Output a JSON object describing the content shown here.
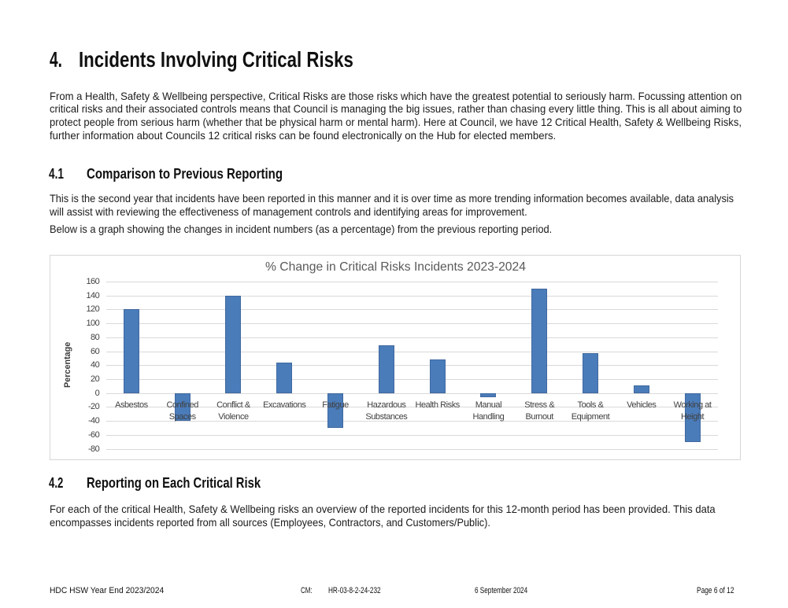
{
  "document": {
    "heading": {
      "number": "4.",
      "title": "Incidents Involving Critical Risks"
    },
    "intro_paragraph_lines": [
      "From a Health, Safety & Wellbeing perspective, Critical Risks are those risks which have the greatest potential to seriously harm. Focussing attention on",
      "critical risks and their associated controls means that Council is managing the big issues, rather than chasing every little thing. This is all about aiming to",
      "protect people from serious harm (whether that be physical harm or mental harm). Here at Council, we have 12 Critical Health, Safety & Wellbeing Risks,",
      "further information about Councils 12 critical risks can be found electronically on the Hub for elected members."
    ],
    "section_4_1": {
      "number": "4.1",
      "title": "Comparison to Previous Reporting",
      "paragraph_lines": [
        "This is the second year that incidents have been reported in this manner and it is over time as more trending information becomes available, data analysis",
        "will assist with reviewing the effectiveness of management controls and identifying areas for improvement."
      ],
      "note_line": "Below is a graph showing the changes in incident numbers (as a percentage) from the previous reporting period."
    },
    "section_4_2": {
      "number": "4.2",
      "title": "Reporting on Each Critical Risk",
      "paragraph_lines": [
        "For each of the critical Health, Safety & Wellbeing risks an overview of the reported incidents for this 12-month period has been provided. This data",
        "encompasses incidents reported from all sources (Employees, Contractors, and Customers/Public)."
      ]
    },
    "footer": {
      "document_name": "HDC HSW Year End 2023/2024",
      "cm_label": "CM:",
      "cm_number": "HR-03-8-2-24-232",
      "date": "6 September 2024",
      "page": "Page 6 of 12"
    }
  },
  "chart_data": {
    "type": "bar",
    "title": "% Change in Critical Risks Incidents 2023-2024",
    "xlabel": "",
    "ylabel": "Percentage",
    "categories": [
      "Asbestos",
      "Confined Spaces",
      "Conflict & Violence",
      "Excavations",
      "Fatigue",
      "Hazardous Substances",
      "Health Risks",
      "Manual Handling",
      "Stress & Burnout",
      "Tools & Equipment",
      "Vehicles",
      "Working at Height"
    ],
    "values": [
      120,
      -40,
      140,
      44,
      -50,
      68,
      48,
      -6,
      150,
      57,
      11,
      -70
    ],
    "category_label_lines": [
      [
        "Asbestos"
      ],
      [
        "Confined",
        "Spaces"
      ],
      [
        "Conflict &",
        "Violence"
      ],
      [
        "Excavations"
      ],
      [
        "Fatigue"
      ],
      [
        "Hazardous",
        "Substances"
      ],
      [
        "Health Risks"
      ],
      [
        "Manual",
        "Handling"
      ],
      [
        "Stress &",
        "Burnout"
      ],
      [
        "Tools &",
        "Equipment"
      ],
      [
        "Vehicles"
      ],
      [
        "Working at",
        "Height"
      ]
    ],
    "ylim": [
      -80,
      160
    ],
    "ytick_step": 20,
    "grid": true,
    "legend": false,
    "colors": {
      "bar_fill": "#4a7cba",
      "bar_border": "#40699f",
      "gridline": "#d9d9d9",
      "title_text": "#595959",
      "axis_text": "#404040",
      "axis_title_text": "#3a3a3a",
      "chart_border": "#d7d7d7"
    }
  }
}
